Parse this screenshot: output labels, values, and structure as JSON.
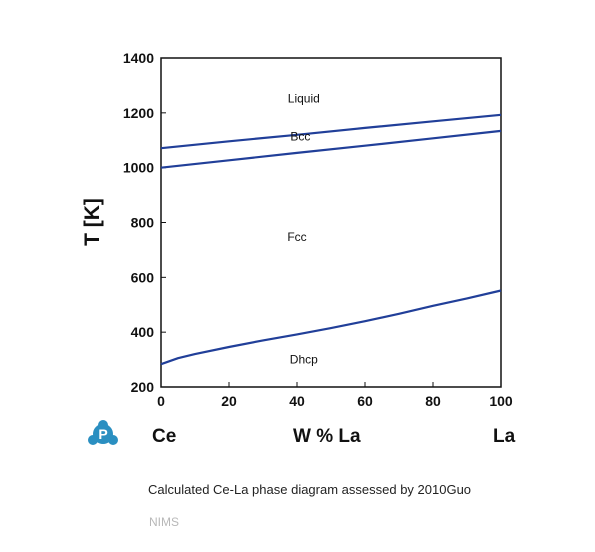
{
  "colors": {
    "curve": "#213f99",
    "logo": "#2a8fc1"
  },
  "logo_icon": "P",
  "caption": "Calculated Ce-La phase diagram assessed by 2010Guo",
  "source": "NIMS",
  "chart_data": {
    "type": "line",
    "ylabel": "T [K]",
    "xlabel": "W % La",
    "x_start_label": "Ce",
    "x_end_label": "La",
    "xlim": [
      0,
      100
    ],
    "ylim": [
      200,
      1400
    ],
    "xticks": [
      0,
      20,
      40,
      60,
      80,
      100
    ],
    "yticks": [
      200,
      400,
      600,
      800,
      1000,
      1200,
      1400
    ],
    "grid": false,
    "series": [
      {
        "x": [
          0,
          20,
          40,
          60,
          80,
          100
        ],
        "y": [
          1071,
          1096,
          1120,
          1145,
          1169,
          1193
        ]
      },
      {
        "x": [
          0,
          20,
          40,
          60,
          80,
          100
        ],
        "y": [
          1000,
          1027,
          1054,
          1080,
          1107,
          1134
        ]
      },
      {
        "x": [
          0,
          5,
          10,
          20,
          30,
          40,
          50,
          60,
          70,
          80,
          90,
          100
        ],
        "y": [
          283,
          305,
          320,
          346,
          370,
          392,
          415,
          440,
          467,
          496,
          523,
          552
        ]
      }
    ],
    "regions": [
      {
        "label": "Liquid",
        "x": 42,
        "y": 1238
      },
      {
        "label": "Bcc",
        "x": 41,
        "y": 1100
      },
      {
        "label": "Fcc",
        "x": 40,
        "y": 733
      },
      {
        "label": "Dhcp",
        "x": 42,
        "y": 285
      }
    ]
  }
}
